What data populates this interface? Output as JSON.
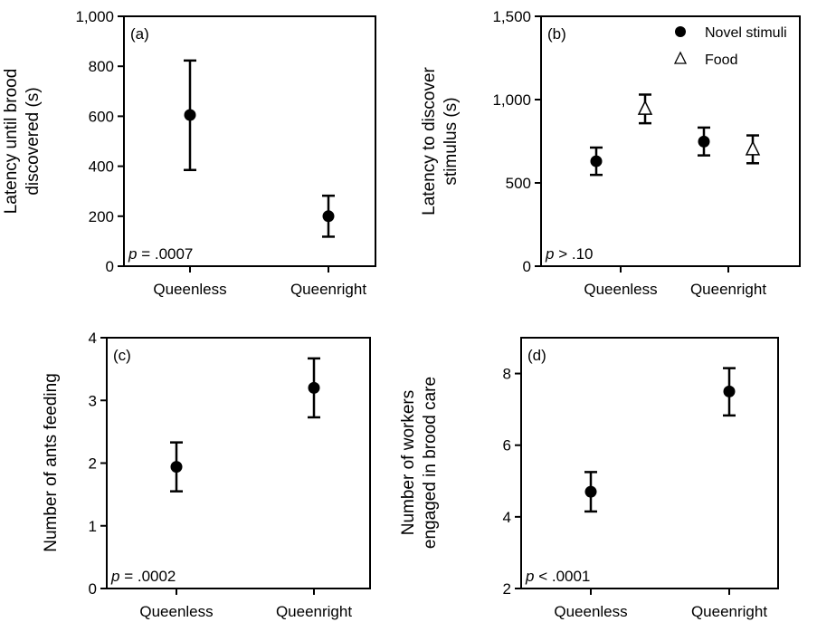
{
  "chart_data": [
    {
      "id": "a",
      "type": "scatter",
      "panel_label": "(a)",
      "ylabel_lines": [
        "Latency until brood",
        "discovered (s)"
      ],
      "categories": [
        "Queenless",
        "Queenright"
      ],
      "ylim": [
        0,
        1000
      ],
      "yticks": [
        0,
        200,
        400,
        600,
        800,
        1000
      ],
      "ytick_labels": [
        "0",
        "200",
        "400",
        "600",
        "800",
        "1,000"
      ],
      "series": [
        {
          "marker": "circle-filled",
          "values": [
            605,
            200
          ],
          "err_low": [
            385,
            118
          ],
          "err_high": [
            823,
            282
          ]
        }
      ],
      "annotation": {
        "italic": "p",
        "text": " = .0007"
      }
    },
    {
      "id": "b",
      "type": "scatter",
      "panel_label": "(b)",
      "ylabel_lines": [
        "Latency to discover",
        "stimulus (s)"
      ],
      "categories": [
        "Queenless",
        "Queenright"
      ],
      "ylim": [
        0,
        1500
      ],
      "yticks": [
        0,
        500,
        1000,
        1500
      ],
      "ytick_labels": [
        "0",
        "500",
        "1,000",
        "1,500"
      ],
      "series": [
        {
          "name": "Novel stimuli",
          "marker": "circle-filled",
          "offset": -1,
          "values": [
            630,
            748
          ],
          "err_low": [
            548,
            665
          ],
          "err_high": [
            712,
            832
          ]
        },
        {
          "name": "Food",
          "marker": "triangle-open",
          "offset": 1,
          "values": [
            945,
            702
          ],
          "err_low": [
            858,
            618
          ],
          "err_high": [
            1030,
            785
          ]
        }
      ],
      "legend": {
        "position": "top-right"
      },
      "annotation": {
        "italic": "p",
        "text": " > .10"
      }
    },
    {
      "id": "c",
      "type": "scatter",
      "panel_label": "(c)",
      "ylabel_lines": [
        "Number of ants feeding"
      ],
      "categories": [
        "Queenless",
        "Queenright"
      ],
      "ylim": [
        0,
        4
      ],
      "yticks": [
        0,
        1,
        2,
        3,
        4
      ],
      "ytick_labels": [
        "0",
        "1",
        "2",
        "3",
        "4"
      ],
      "series": [
        {
          "marker": "circle-filled",
          "values": [
            1.94,
            3.2
          ],
          "err_low": [
            1.55,
            2.73
          ],
          "err_high": [
            2.33,
            3.67
          ]
        }
      ],
      "annotation": {
        "italic": "p",
        "text": " = .0002"
      }
    },
    {
      "id": "d",
      "type": "scatter",
      "panel_label": "(d)",
      "ylabel_lines": [
        "Number of workers",
        "engaged in brood care"
      ],
      "categories": [
        "Queenless",
        "Queenright"
      ],
      "ylim": [
        2,
        9
      ],
      "yticks": [
        2,
        4,
        6,
        8
      ],
      "ytick_labels": [
        "2",
        "4",
        "6",
        "8"
      ],
      "series": [
        {
          "marker": "circle-filled",
          "values": [
            4.7,
            7.5
          ],
          "err_low": [
            4.15,
            6.83
          ],
          "err_high": [
            5.25,
            8.15
          ]
        }
      ],
      "annotation": {
        "italic": "p",
        "text": " < .0001"
      }
    }
  ]
}
